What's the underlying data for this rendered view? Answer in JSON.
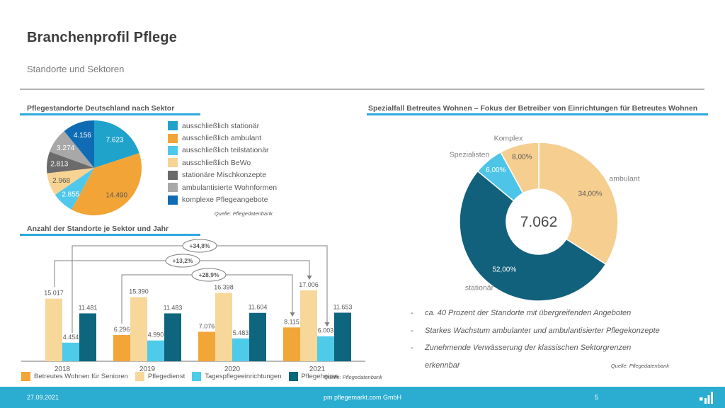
{
  "colors": {
    "accent_cyan": "#2BA9DC",
    "footer_bg": "#2BACD1",
    "divider_gray": "#B3B3B3",
    "heading_gray": "#595959",
    "title_gray": "#3D3D3D"
  },
  "slide": {
    "title": "Branchenprofil Pflege",
    "subtitle": "Standorte und Sektoren"
  },
  "bullet_marker": "-",
  "bullets": [
    {
      "lines": [
        "ca. 40 Prozent der Standorte mit übergreifenden Angeboten"
      ]
    },
    {
      "lines": [
        "Starkes Wachstum ambulanter und ambulantisierter Pflegekonzepte"
      ]
    },
    {
      "lines": [
        "Zunehmende Verwässerung der klassischen Sektorgrenzen",
        "erkennbar"
      ]
    }
  ],
  "footer": {
    "date": "27.09.2021",
    "company": "pm pflegemarkt.com GmbH",
    "page": "5",
    "logo_icon": "bar-chart-logo-icon"
  },
  "chart_data": [
    {
      "type": "pie",
      "title": "Pflegestandorte Deutschland nach Sektor",
      "source": "Quelle: Pflegedatenbank",
      "slices": [
        {
          "label": "ausschließlich stationär",
          "value": 7623,
          "value_label": "7.623",
          "color": "#1FA3CB",
          "text_color": "#FFFFFF"
        },
        {
          "label": "ausschließlich ambulant",
          "value": 14490,
          "value_label": "14.490",
          "color": "#F2A536",
          "text_color": "#595959"
        },
        {
          "label": "ausschließlich teilstationär",
          "value": 2855,
          "value_label": "2.855",
          "color": "#4FC8EC",
          "text_color": "#FFFFFF"
        },
        {
          "label": "ausschließlich BeWo",
          "value": 2968,
          "value_label": "2.968",
          "color": "#F7D493",
          "text_color": "#595959"
        },
        {
          "label": "stationäre Mischkonzepte",
          "value": 2813,
          "value_label": "2.813",
          "color": "#6B6B6B",
          "text_color": "#FFFFFF"
        },
        {
          "label": "ambulantisierte Wohnformen",
          "value": 3274,
          "value_label": "3.274",
          "color": "#A8A8A8",
          "text_color": "#FFFFFF"
        },
        {
          "label": "komplexe Pflegeangebote",
          "value": 4156,
          "value_label": "4.156",
          "color": "#0F6CB4",
          "text_color": "#FFFFFF"
        }
      ]
    },
    {
      "type": "bar",
      "title": "Anzahl der Standorte je Sektor und Jahr",
      "source": "Quelle: Pflegedatenbank",
      "categories": [
        "2018",
        "2019",
        "2020",
        "2021"
      ],
      "series": [
        {
          "name": "Betreutes Wohnen für Senioren",
          "color": "#F2A637",
          "values": [
            null,
            6296,
            7076,
            8115
          ],
          "value_labels": [
            "",
            "6.296",
            "7.076",
            "8.115"
          ]
        },
        {
          "name": "Pflegedienst",
          "color": "#F8D79B",
          "values": [
            15017,
            15390,
            16398,
            17006
          ],
          "value_labels": [
            "15.017",
            "15.390",
            "16.398",
            "17.006"
          ]
        },
        {
          "name": "Tagespflegeeinrichtungen",
          "color": "#4FCBEA",
          "values": [
            4454,
            4990,
            5483,
            6003
          ],
          "value_labels": [
            "4.454",
            "4.990",
            "5.483",
            "6.003"
          ]
        },
        {
          "name": "Pflegeheime",
          "color": "#0E657E",
          "values": [
            11481,
            11483,
            11604,
            11653
          ],
          "value_labels": [
            "11.481",
            "11.483",
            "11.604",
            "11.653"
          ]
        }
      ],
      "annotations": [
        {
          "label": "+34,8%",
          "series": "Tagespflegeeinrichtungen",
          "from_year": "2018",
          "to_year": "2021"
        },
        {
          "label": "+13,2%",
          "series": "Pflegedienst",
          "from_year": "2018",
          "to_year": "2021"
        },
        {
          "label": "+28,9%",
          "series": "Betreutes Wohnen für Senioren",
          "from_year": "2019",
          "to_year": "2021"
        }
      ]
    },
    {
      "type": "pie",
      "subtype": "donut",
      "title": "Spezialfall Betreutes Wohnen – Fokus der Betreiber von Einrichtungen für Betreutes Wohnen",
      "source": "Quelle: Pflegedatenbank",
      "center_label": "7.062",
      "slices": [
        {
          "label": "ambulant",
          "value": 34,
          "value_label": "34,00%",
          "color": "#F6CF90",
          "text_color": "#595959"
        },
        {
          "label": "stationär",
          "value": 52,
          "value_label": "52,00%",
          "color": "#12617C",
          "text_color": "#FFFFFF"
        },
        {
          "label": "Spezialisten",
          "value": 6,
          "value_label": "6,00%",
          "color": "#4EC5E8",
          "text_color": "#FFFFFF"
        },
        {
          "label": "Komplex",
          "value": 8,
          "value_label": "8,00%",
          "color": "#F6CF90",
          "text_color": "#595959"
        }
      ]
    }
  ]
}
